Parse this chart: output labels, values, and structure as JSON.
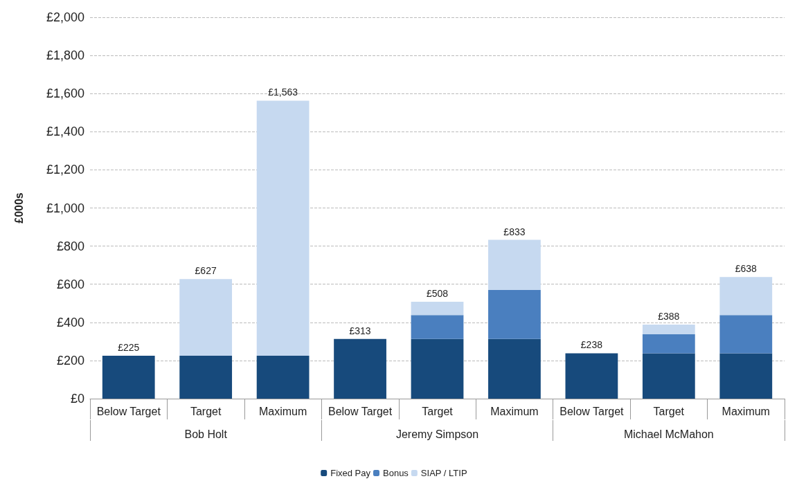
{
  "chart_data": {
    "type": "bar",
    "stacked": true,
    "ylabel": "£000s",
    "categories": [
      "Below Target",
      "Target",
      "Maximum",
      "Below Target",
      "Target",
      "Maximum",
      "Below Target",
      "Target",
      "Maximum"
    ],
    "annotations": [
      "Bob Holt",
      "Jeremy Simpson",
      "Michael McMahon"
    ],
    "series": [
      {
        "name": "Fixed Pay",
        "color": "#174a7c",
        "values": [
          225,
          225,
          225,
          313,
          313,
          313,
          238,
          238,
          238
        ]
      },
      {
        "name": "Bonus",
        "color": "#4a7fbf",
        "values": [
          0,
          0,
          0,
          0,
          125,
          257,
          0,
          100,
          200
        ]
      },
      {
        "name": "SIAP / LTIP",
        "color": "#c6d9f0",
        "values": [
          0,
          402,
          1338,
          0,
          70,
          263,
          0,
          50,
          200
        ]
      }
    ],
    "totals": [
      "£225",
      "£627",
      "£1,563",
      "£313",
      "£508",
      "£833",
      "£238",
      "£388",
      "£638"
    ],
    "ylim": [
      0,
      2000
    ],
    "yticks": [
      {
        "value": 0,
        "label": "£0"
      },
      {
        "value": 200,
        "label": "£200"
      },
      {
        "value": 400,
        "label": "£400"
      },
      {
        "value": 600,
        "label": "£600"
      },
      {
        "value": 800,
        "label": "£800"
      },
      {
        "value": 1000,
        "label": "£1,000"
      },
      {
        "value": 1200,
        "label": "£1,200"
      },
      {
        "value": 1400,
        "label": "£1,400"
      },
      {
        "value": 1600,
        "label": "£1,600"
      },
      {
        "value": 1800,
        "label": "£1,800"
      },
      {
        "value": 2000,
        "label": "£2,000"
      }
    ],
    "grid": "y",
    "legend": "bottom"
  }
}
